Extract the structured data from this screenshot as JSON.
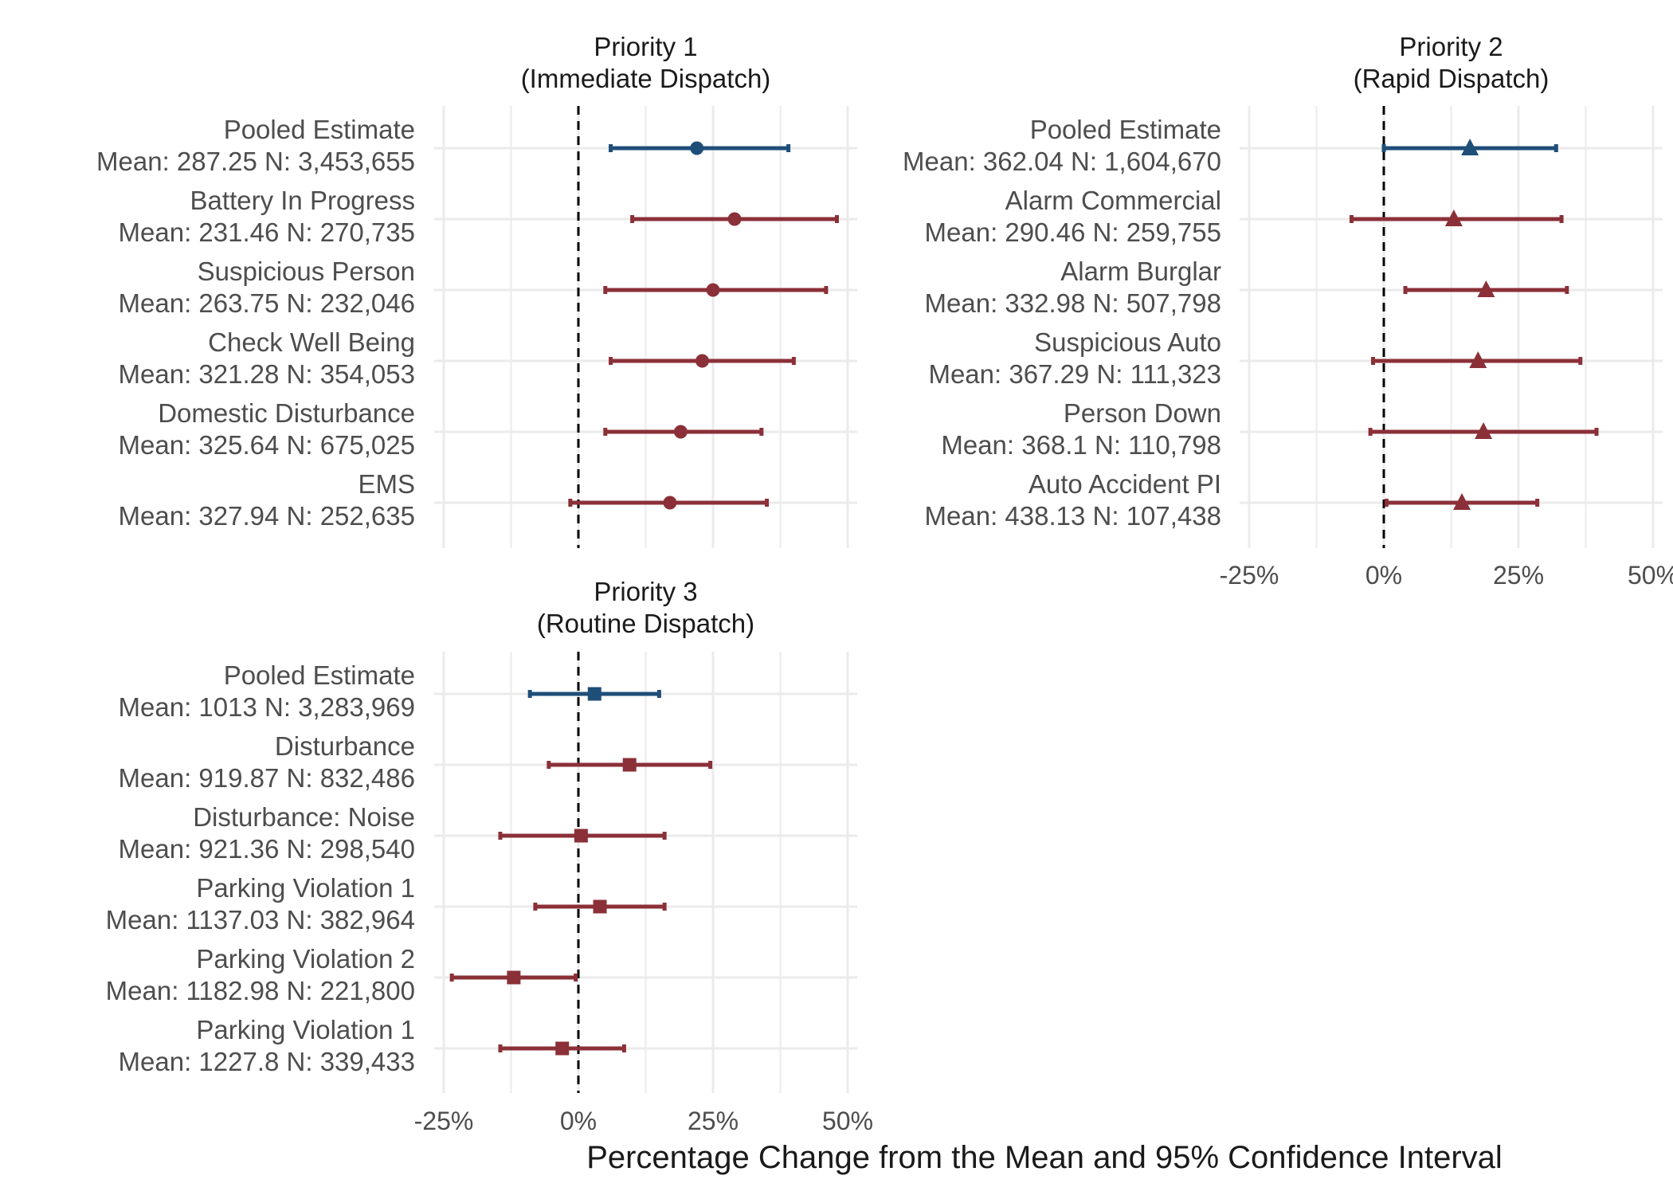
{
  "chart_data": {
    "type": "forest",
    "xlabel": "Percentage Change from the Mean and 95% Confidence Interval",
    "xticks": [
      "-25%",
      "0%",
      "25%",
      "50%"
    ],
    "xtick_values": [
      -25,
      0,
      25,
      50
    ],
    "xlim": [
      -25,
      50
    ],
    "reference_line": 0,
    "grid": true,
    "colors": {
      "pooled": "#1f4e79",
      "subgroup": "#8b3038",
      "reference": "#000000",
      "grid": "#ebebeb"
    },
    "panels": [
      {
        "title_line1": "Priority 1",
        "title_line2": "(Immediate Dispatch)",
        "marker": "circle",
        "show_x_axis": false,
        "rows": [
          {
            "label": "Pooled Estimate",
            "sublabel": "Mean: 287.25 N: 3,453,655",
            "estimate": 22,
            "lower": 6,
            "upper": 39,
            "pooled": true
          },
          {
            "label": "Battery In Progress",
            "sublabel": "Mean: 231.46 N: 270,735",
            "estimate": 29,
            "lower": 10,
            "upper": 48,
            "pooled": false
          },
          {
            "label": "Suspicious Person",
            "sublabel": "Mean: 263.75 N: 232,046",
            "estimate": 25,
            "lower": 5,
            "upper": 46,
            "pooled": false
          },
          {
            "label": "Check Well Being",
            "sublabel": "Mean: 321.28 N: 354,053",
            "estimate": 23,
            "lower": 6,
            "upper": 40,
            "pooled": false
          },
          {
            "label": "Domestic Disturbance",
            "sublabel": "Mean: 325.64 N: 675,025",
            "estimate": 19,
            "lower": 5,
            "upper": 34,
            "pooled": false
          },
          {
            "label": "EMS",
            "sublabel": "Mean: 327.94 N: 252,635",
            "estimate": 17,
            "lower": -1.5,
            "upper": 35,
            "pooled": false
          }
        ]
      },
      {
        "title_line1": "Priority 2",
        "title_line2": "(Rapid Dispatch)",
        "marker": "triangle",
        "show_x_axis": true,
        "rows": [
          {
            "label": "Pooled Estimate",
            "sublabel": "Mean: 362.04 N: 1,604,670",
            "estimate": 16,
            "lower": 0,
            "upper": 32,
            "pooled": true
          },
          {
            "label": "Alarm Commercial",
            "sublabel": "Mean: 290.46 N: 259,755",
            "estimate": 13,
            "lower": -6,
            "upper": 33,
            "pooled": false
          },
          {
            "label": "Alarm Burglar",
            "sublabel": "Mean: 332.98 N: 507,798",
            "estimate": 19,
            "lower": 4,
            "upper": 34,
            "pooled": false
          },
          {
            "label": "Suspicious Auto",
            "sublabel": "Mean: 367.29 N: 111,323",
            "estimate": 17.5,
            "lower": -2,
            "upper": 36.5,
            "pooled": false
          },
          {
            "label": "Person Down",
            "sublabel": "Mean: 368.1 N: 110,798",
            "estimate": 18.5,
            "lower": -2.5,
            "upper": 39.5,
            "pooled": false
          },
          {
            "label": "Auto Accident PI",
            "sublabel": "Mean: 438.13 N: 107,438",
            "estimate": 14.5,
            "lower": 0.5,
            "upper": 28.5,
            "pooled": false
          }
        ]
      },
      {
        "title_line1": "Priority 3",
        "title_line2": "(Routine Dispatch)",
        "marker": "square",
        "show_x_axis": true,
        "rows": [
          {
            "label": "Pooled Estimate",
            "sublabel": "Mean: 1013 N: 3,283,969",
            "estimate": 3,
            "lower": -9,
            "upper": 15,
            "pooled": true
          },
          {
            "label": "Disturbance",
            "sublabel": "Mean: 919.87 N: 832,486",
            "estimate": 9.5,
            "lower": -5.5,
            "upper": 24.5,
            "pooled": false
          },
          {
            "label": "Disturbance: Noise",
            "sublabel": "Mean: 921.36 N: 298,540",
            "estimate": 0.5,
            "lower": -14.5,
            "upper": 16,
            "pooled": false
          },
          {
            "label": "Parking Violation 1",
            "sublabel": "Mean: 1137.03 N: 382,964",
            "estimate": 4,
            "lower": -8,
            "upper": 16,
            "pooled": false
          },
          {
            "label": "Parking Violation 2",
            "sublabel": "Mean: 1182.98 N: 221,800",
            "estimate": -12,
            "lower": -23.5,
            "upper": -0.5,
            "pooled": false
          },
          {
            "label": "Parking Violation 1",
            "sublabel": "Mean: 1227.8 N: 339,433",
            "estimate": -3,
            "lower": -14.5,
            "upper": 8.5,
            "pooled": false
          }
        ]
      }
    ]
  }
}
